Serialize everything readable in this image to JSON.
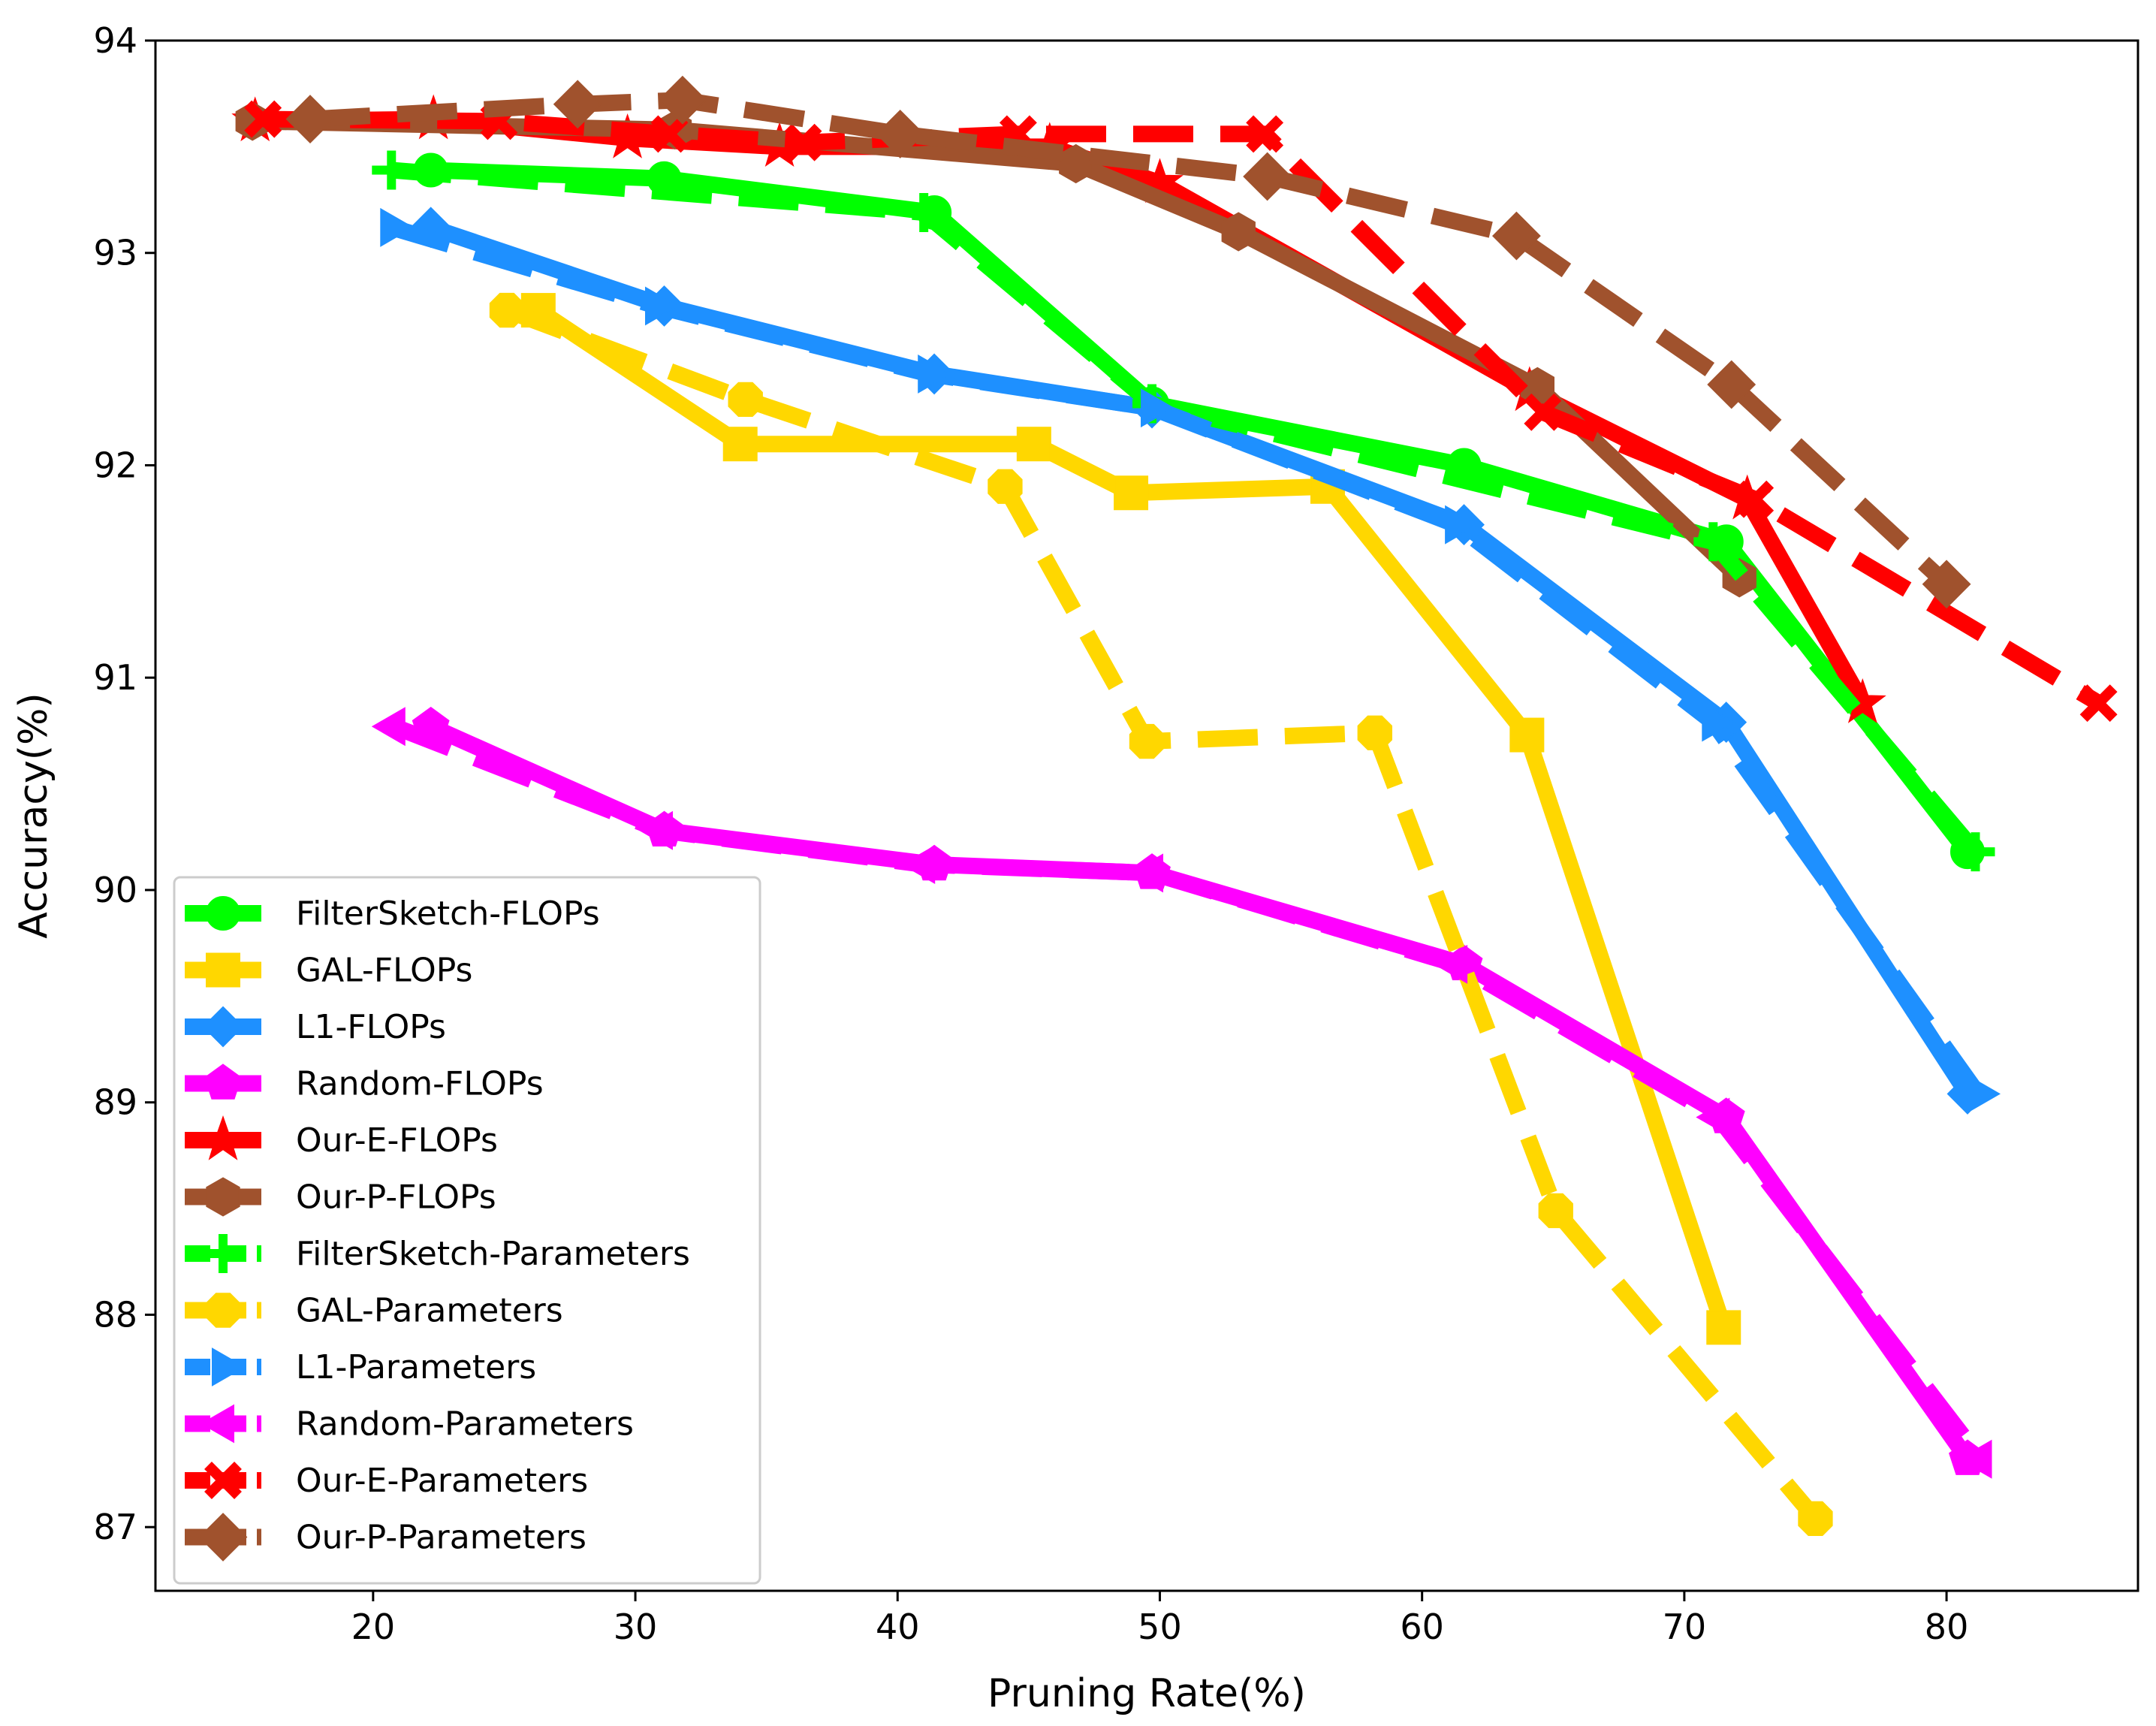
{
  "chart_data": {
    "type": "line",
    "title": "",
    "xlabel": "Pruning Rate(%)",
    "ylabel": "Accuracy(%)",
    "xlim": [
      11.7,
      87.3
    ],
    "ylim": [
      86.7,
      94.0
    ],
    "xticks": [
      20,
      30,
      40,
      50,
      60,
      70,
      80
    ],
    "yticks": [
      87,
      88,
      89,
      90,
      91,
      92,
      93,
      94
    ],
    "legend_position": "lower-left",
    "series": [
      {
        "name": "FilterSketch-FLOPs",
        "color": "#00ff00",
        "dash": "solid",
        "marker": "circle",
        "x": [
          22.2,
          31.1,
          41.4,
          49.7,
          61.6,
          71.6,
          80.8
        ],
        "y": [
          93.39,
          93.35,
          93.19,
          92.29,
          92.0,
          91.64,
          90.18
        ]
      },
      {
        "name": "GAL-FLOPs",
        "color": "#ffd700",
        "dash": "solid",
        "marker": "square",
        "x": [
          26.3,
          34.0,
          45.2,
          48.9,
          56.4,
          64.0,
          71.5
        ],
        "y": [
          92.73,
          92.1,
          92.1,
          91.87,
          91.9,
          90.73,
          87.94
        ]
      },
      {
        "name": "L1-FLOPs",
        "color": "#1e90ff",
        "dash": "solid",
        "marker": "diamond",
        "x": [
          22.2,
          31.1,
          41.4,
          49.7,
          61.6,
          71.6,
          80.8
        ],
        "y": [
          93.12,
          92.75,
          92.43,
          92.27,
          91.72,
          90.79,
          89.04
        ]
      },
      {
        "name": "Random-FLOPs",
        "color": "#ff00ff",
        "dash": "solid",
        "marker": "pentagon",
        "x": [
          22.2,
          31.1,
          41.4,
          49.7,
          61.6,
          71.6,
          80.8
        ],
        "y": [
          90.77,
          90.28,
          90.12,
          90.08,
          89.65,
          88.93,
          87.32
        ]
      },
      {
        "name": "Our-E-FLOPs",
        "color": "#ff0000",
        "dash": "solid",
        "marker": "star",
        "x": [
          15.5,
          22.3,
          29.7,
          35.5,
          45.8,
          50.0,
          64.1,
          72.4,
          76.8
        ],
        "y": [
          93.62,
          93.63,
          93.54,
          93.5,
          93.5,
          93.33,
          92.35,
          91.84,
          90.88
        ]
      },
      {
        "name": "Our-P-FLOPs",
        "color": "#a0522d",
        "dash": "solid",
        "marker": "hexagon",
        "x": [
          15.4,
          31.5,
          46.8,
          53.0,
          64.4,
          72.1
        ],
        "y": [
          93.62,
          93.58,
          93.42,
          93.1,
          92.37,
          91.47
        ]
      },
      {
        "name": "FilterSketch-Parameters",
        "color": "#00ff00",
        "dash": "dashed",
        "marker": "plus",
        "x": [
          20.7,
          41.0,
          49.7,
          71.1,
          81.1
        ],
        "y": [
          93.39,
          93.19,
          92.29,
          91.64,
          90.18
        ]
      },
      {
        "name": "GAL-Parameters",
        "color": "#ffd700",
        "dash": "dashed",
        "marker": "octagon",
        "x": [
          25.1,
          34.2,
          44.1,
          49.5,
          58.2,
          65.1,
          75.0
        ],
        "y": [
          92.73,
          92.31,
          91.9,
          90.7,
          90.74,
          88.49,
          87.04
        ]
      },
      {
        "name": "L1-Parameters",
        "color": "#1e90ff",
        "dash": "dashed",
        "marker": "triangle-right",
        "x": [
          20.7,
          30.8,
          41.2,
          49.7,
          61.3,
          71.1,
          81.2
        ],
        "y": [
          93.12,
          92.75,
          92.43,
          92.27,
          91.72,
          90.79,
          89.04
        ]
      },
      {
        "name": "Random-Parameters",
        "color": "#ff00ff",
        "dash": "dashed",
        "marker": "triangle-left",
        "x": [
          20.8,
          31.0,
          41.0,
          49.7,
          61.3,
          71.3,
          81.3
        ],
        "y": [
          90.77,
          90.28,
          90.12,
          90.08,
          89.65,
          88.93,
          87.32
        ]
      },
      {
        "name": "Our-E-Parameters",
        "color": "#ff0000",
        "dash": "dashed",
        "marker": "x-filled",
        "x": [
          15.8,
          24.8,
          31.3,
          36.4,
          44.6,
          54.0,
          64.6,
          72.7,
          85.8
        ],
        "y": [
          93.63,
          93.62,
          93.56,
          93.52,
          93.56,
          93.56,
          92.25,
          91.84,
          90.88
        ]
      },
      {
        "name": "Our-P-Parameters",
        "color": "#a0522d",
        "dash": "dashed",
        "marker": "diamond-big",
        "x": [
          17.6,
          27.8,
          31.8,
          40.1,
          54.1,
          63.6,
          71.8,
          80.0
        ],
        "y": [
          93.63,
          93.7,
          93.72,
          93.56,
          93.36,
          93.08,
          92.38,
          91.44
        ]
      }
    ]
  }
}
